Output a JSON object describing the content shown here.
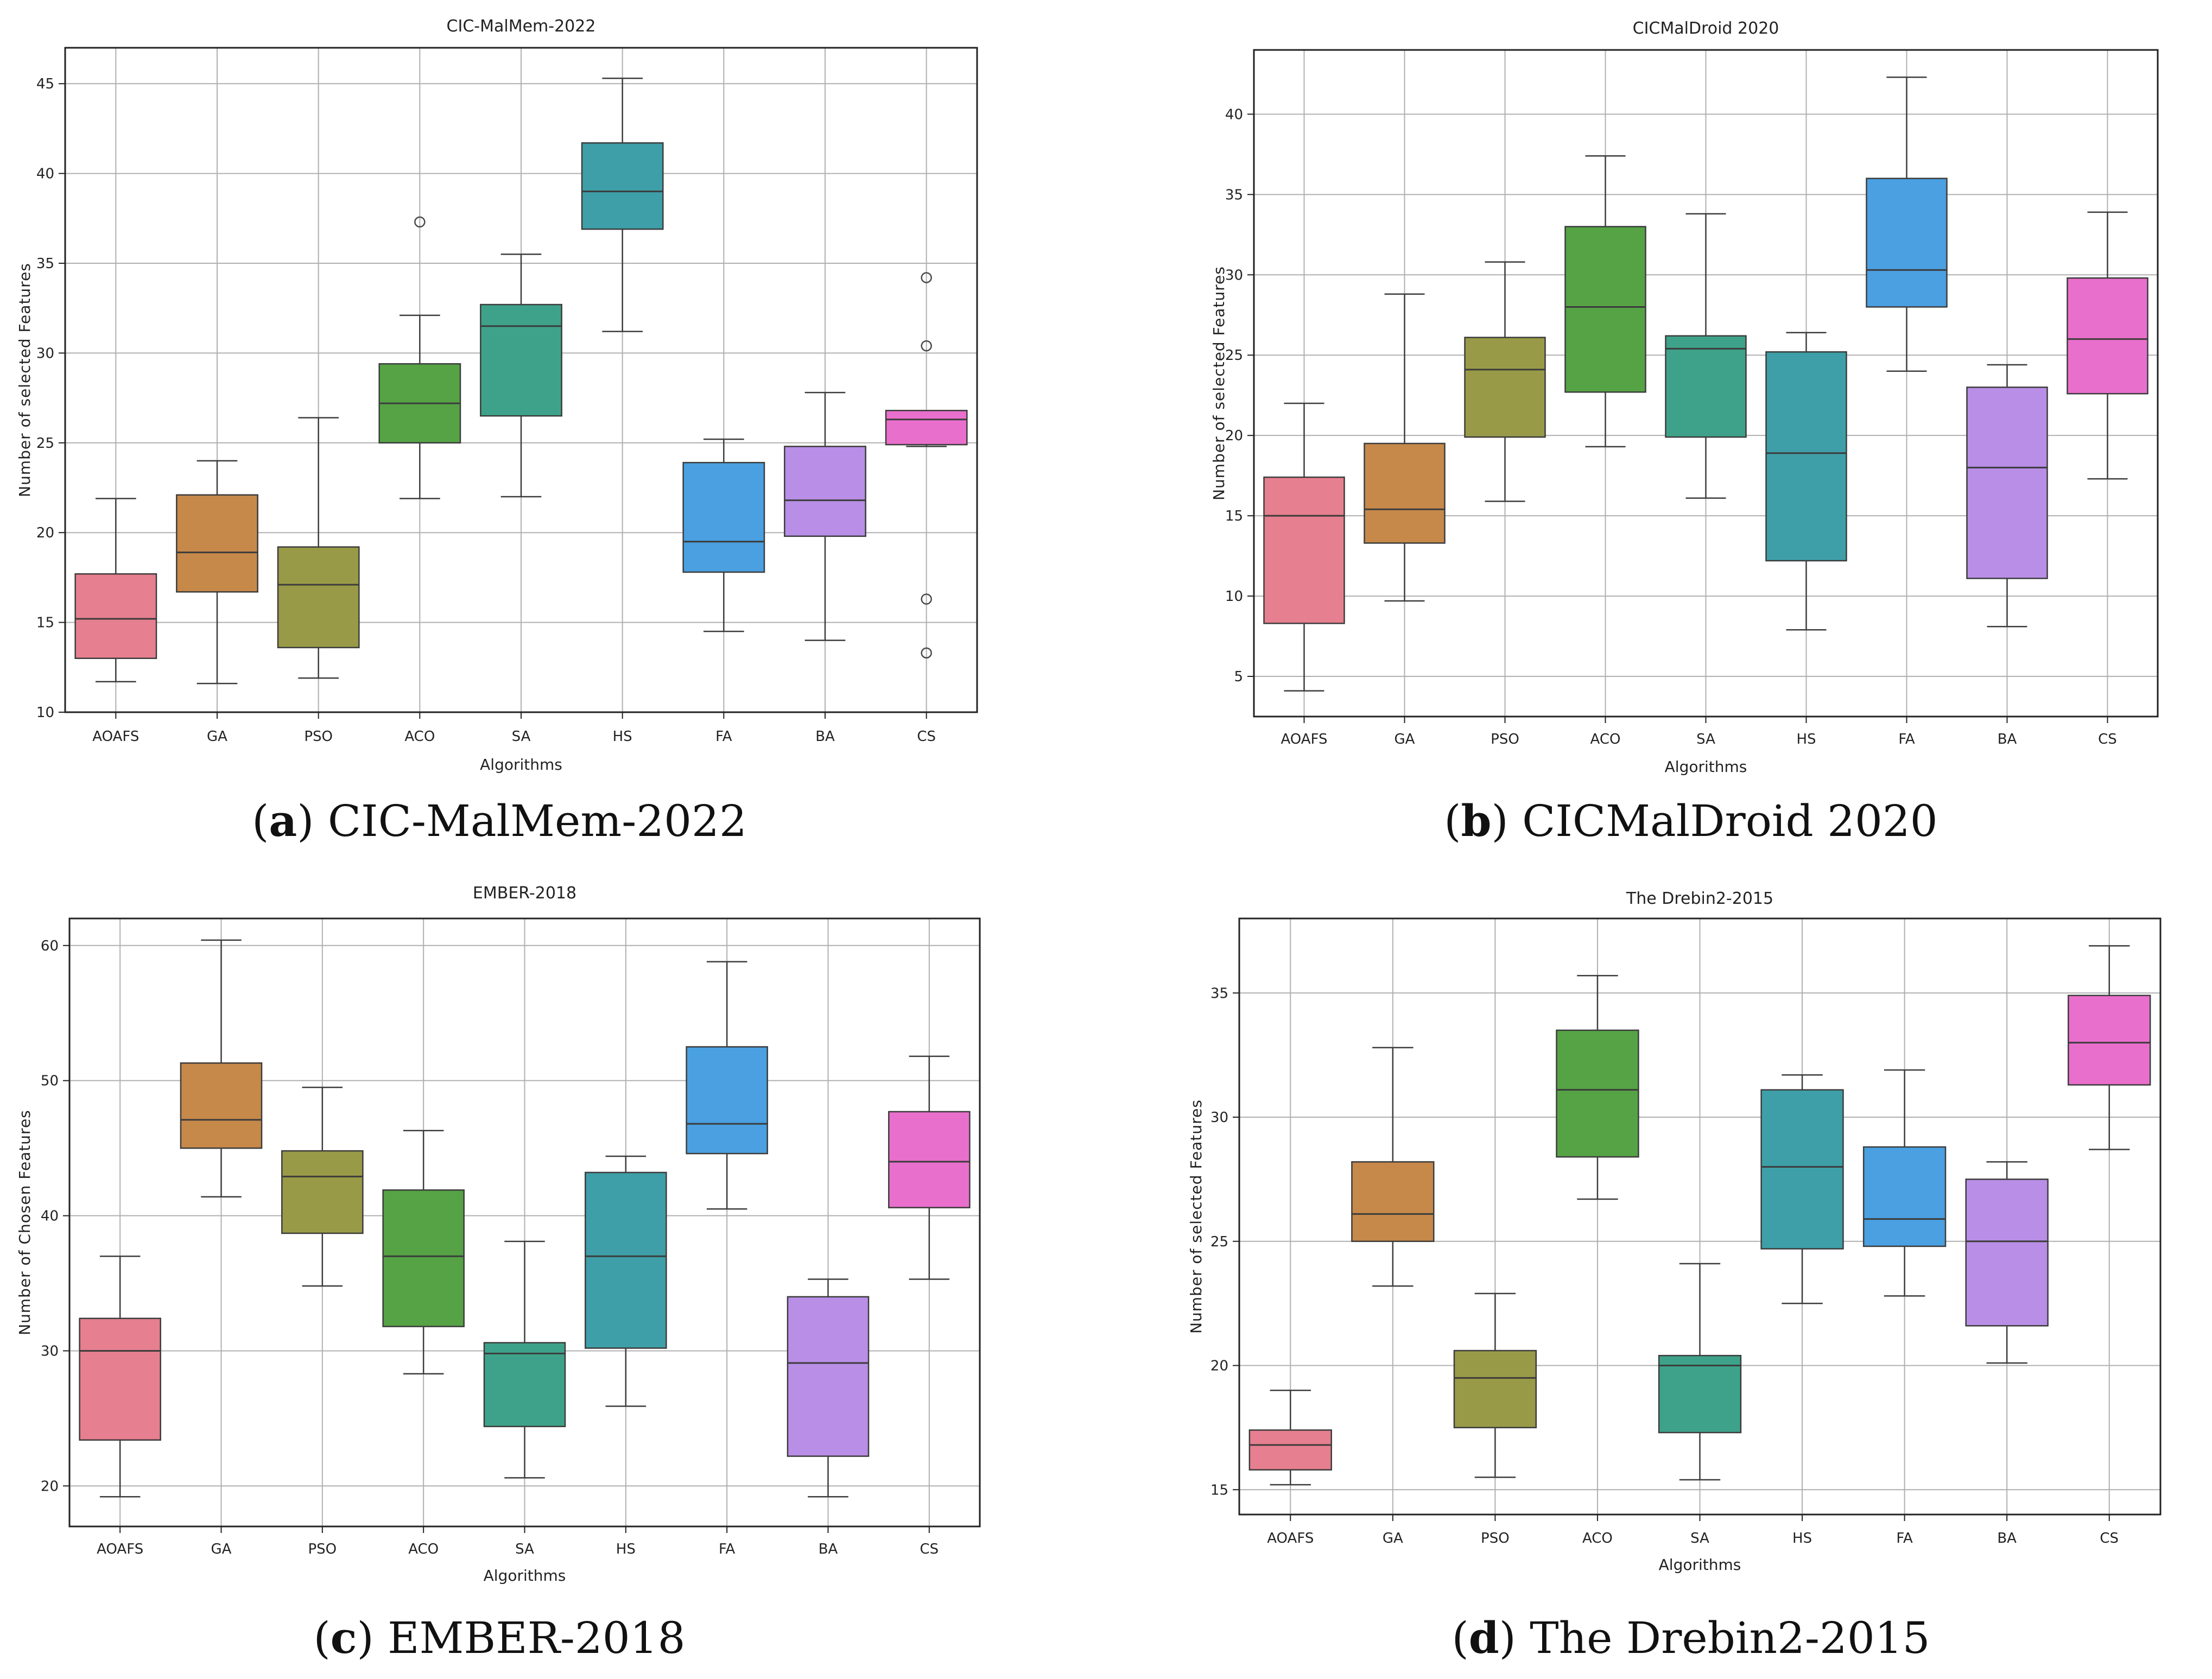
{
  "palette": {
    "AOAFS": "#e67f8f",
    "GA": "#c6894a",
    "PSO": "#999a47",
    "ACO": "#55a345",
    "SA": "#3ea28a",
    "HS": "#3e9fa8",
    "FA": "#4aa0e0",
    "BA": "#b88ee6",
    "CS": "#e96fcc"
  },
  "chart_data": [
    {
      "type": "box",
      "id": "a",
      "title": "CIC-MalMem-2022",
      "xlabel": "Algorithms",
      "ylabel": "Number of selected Features",
      "ylim": [
        10,
        47
      ],
      "yticks": [
        10,
        15,
        20,
        25,
        30,
        35,
        40,
        45
      ],
      "grid": true,
      "caption": {
        "letter": "a",
        "text": "CIC-MalMem-2022"
      },
      "boxes": [
        {
          "label": "AOAFS",
          "whislo": 11.7,
          "q1": 13.0,
          "med": 15.2,
          "q3": 17.7,
          "whishi": 21.9,
          "fliers": []
        },
        {
          "label": "GA",
          "whislo": 11.6,
          "q1": 16.7,
          "med": 18.9,
          "q3": 22.1,
          "whishi": 24.0,
          "fliers": []
        },
        {
          "label": "PSO",
          "whislo": 11.9,
          "q1": 13.6,
          "med": 17.1,
          "q3": 19.2,
          "whishi": 26.4,
          "fliers": []
        },
        {
          "label": "ACO",
          "whislo": 21.9,
          "q1": 25.0,
          "med": 27.2,
          "q3": 29.4,
          "whishi": 32.1,
          "fliers": [
            37.3
          ]
        },
        {
          "label": "SA",
          "whislo": 22.0,
          "q1": 26.5,
          "med": 31.5,
          "q3": 32.7,
          "whishi": 35.5,
          "fliers": []
        },
        {
          "label": "HS",
          "whislo": 31.2,
          "q1": 36.9,
          "med": 39.0,
          "q3": 41.7,
          "whishi": 45.3,
          "fliers": []
        },
        {
          "label": "FA",
          "whislo": 14.5,
          "q1": 17.8,
          "med": 19.5,
          "q3": 23.9,
          "whishi": 25.2,
          "fliers": []
        },
        {
          "label": "BA",
          "whislo": 14.0,
          "q1": 19.8,
          "med": 21.8,
          "q3": 24.8,
          "whishi": 27.8,
          "fliers": []
        },
        {
          "label": "CS",
          "whislo": 24.8,
          "q1": 24.9,
          "med": 26.3,
          "q3": 26.8,
          "whishi": 26.8,
          "fliers": [
            34.2,
            30.4,
            16.3,
            13.3
          ]
        }
      ]
    },
    {
      "type": "box",
      "id": "b",
      "title": "CICMalDroid 2020",
      "xlabel": "Algorithms",
      "ylabel": "Number of selected Features",
      "ylim": [
        2.5,
        44
      ],
      "yticks": [
        5,
        10,
        15,
        20,
        25,
        30,
        35,
        40
      ],
      "grid": true,
      "caption": {
        "letter": "b",
        "text": "CICMalDroid 2020"
      },
      "boxes": [
        {
          "label": "AOAFS",
          "whislo": 4.1,
          "q1": 8.3,
          "med": 15.0,
          "q3": 17.4,
          "whishi": 22.0,
          "fliers": []
        },
        {
          "label": "GA",
          "whislo": 9.7,
          "q1": 13.3,
          "med": 15.4,
          "q3": 19.5,
          "whishi": 28.8,
          "fliers": []
        },
        {
          "label": "PSO",
          "whislo": 15.9,
          "q1": 19.9,
          "med": 24.1,
          "q3": 26.1,
          "whishi": 30.8,
          "fliers": []
        },
        {
          "label": "ACO",
          "whislo": 19.3,
          "q1": 22.7,
          "med": 28.0,
          "q3": 33.0,
          "whishi": 37.4,
          "fliers": []
        },
        {
          "label": "SA",
          "whislo": 16.1,
          "q1": 19.9,
          "med": 25.4,
          "q3": 26.2,
          "whishi": 33.8,
          "fliers": []
        },
        {
          "label": "HS",
          "whislo": 7.9,
          "q1": 12.2,
          "med": 18.9,
          "q3": 25.2,
          "whishi": 26.4,
          "fliers": []
        },
        {
          "label": "FA",
          "whislo": 24.0,
          "q1": 28.0,
          "med": 30.3,
          "q3": 36.0,
          "whishi": 42.3,
          "fliers": []
        },
        {
          "label": "BA",
          "whislo": 8.1,
          "q1": 11.1,
          "med": 18.0,
          "q3": 23.0,
          "whishi": 24.4,
          "fliers": []
        },
        {
          "label": "CS",
          "whislo": 17.3,
          "q1": 22.6,
          "med": 26.0,
          "q3": 29.8,
          "whishi": 33.9,
          "fliers": []
        }
      ]
    },
    {
      "type": "box",
      "id": "c",
      "title": "EMBER-2018",
      "xlabel": "Algorithms",
      "ylabel": "Number of Chosen Features",
      "ylim": [
        17,
        62
      ],
      "yticks": [
        20,
        30,
        40,
        50,
        60
      ],
      "grid": true,
      "caption": {
        "letter": "c",
        "text": "EMBER-2018"
      },
      "boxes": [
        {
          "label": "AOAFS",
          "whislo": 19.2,
          "q1": 23.4,
          "med": 30.0,
          "q3": 32.4,
          "whishi": 37.0,
          "fliers": []
        },
        {
          "label": "GA",
          "whislo": 41.4,
          "q1": 45.0,
          "med": 47.1,
          "q3": 51.3,
          "whishi": 60.4,
          "fliers": []
        },
        {
          "label": "PSO",
          "whislo": 34.8,
          "q1": 38.7,
          "med": 42.9,
          "q3": 44.8,
          "whishi": 49.5,
          "fliers": []
        },
        {
          "label": "ACO",
          "whislo": 28.3,
          "q1": 31.8,
          "med": 37.0,
          "q3": 41.9,
          "whishi": 46.3,
          "fliers": []
        },
        {
          "label": "SA",
          "whislo": 20.6,
          "q1": 24.4,
          "med": 29.8,
          "q3": 30.6,
          "whishi": 38.1,
          "fliers": []
        },
        {
          "label": "HS",
          "whislo": 25.9,
          "q1": 30.2,
          "med": 37.0,
          "q3": 43.2,
          "whishi": 44.4,
          "fliers": []
        },
        {
          "label": "FA",
          "whislo": 40.5,
          "q1": 44.6,
          "med": 46.8,
          "q3": 52.5,
          "whishi": 58.8,
          "fliers": []
        },
        {
          "label": "BA",
          "whislo": 19.2,
          "q1": 22.2,
          "med": 29.1,
          "q3": 34.0,
          "whishi": 35.3,
          "fliers": []
        },
        {
          "label": "CS",
          "whislo": 35.3,
          "q1": 40.6,
          "med": 44.0,
          "q3": 47.7,
          "whishi": 51.8,
          "fliers": []
        }
      ]
    },
    {
      "type": "box",
      "id": "d",
      "title": "The Drebin2-2015",
      "xlabel": "Algorithms",
      "ylabel": "Number of selected Features",
      "ylim": [
        14,
        38
      ],
      "yticks": [
        15,
        20,
        25,
        30,
        35
      ],
      "grid": true,
      "caption": {
        "letter": "d",
        "text": "The Drebin2-2015"
      },
      "boxes": [
        {
          "label": "AOAFS",
          "whislo": 15.2,
          "q1": 15.8,
          "med": 16.8,
          "q3": 17.4,
          "whishi": 19.0,
          "fliers": []
        },
        {
          "label": "GA",
          "whislo": 23.2,
          "q1": 25.0,
          "med": 26.1,
          "q3": 28.2,
          "whishi": 32.8,
          "fliers": []
        },
        {
          "label": "PSO",
          "whislo": 15.5,
          "q1": 17.5,
          "med": 19.5,
          "q3": 20.6,
          "whishi": 22.9,
          "fliers": []
        },
        {
          "label": "ACO",
          "whislo": 26.7,
          "q1": 28.4,
          "med": 31.1,
          "q3": 33.5,
          "whishi": 35.7,
          "fliers": []
        },
        {
          "label": "SA",
          "whislo": 15.4,
          "q1": 17.3,
          "med": 20.0,
          "q3": 20.4,
          "whishi": 24.1,
          "fliers": []
        },
        {
          "label": "HS",
          "whislo": 22.5,
          "q1": 24.7,
          "med": 28.0,
          "q3": 31.1,
          "whishi": 31.7,
          "fliers": []
        },
        {
          "label": "FA",
          "whislo": 22.8,
          "q1": 24.8,
          "med": 25.9,
          "q3": 28.8,
          "whishi": 31.9,
          "fliers": []
        },
        {
          "label": "BA",
          "whislo": 20.1,
          "q1": 21.6,
          "med": 25.0,
          "q3": 27.5,
          "whishi": 28.2,
          "fliers": []
        },
        {
          "label": "CS",
          "whislo": 28.7,
          "q1": 31.3,
          "med": 33.0,
          "q3": 34.9,
          "whishi": 36.9,
          "fliers": []
        }
      ]
    }
  ]
}
